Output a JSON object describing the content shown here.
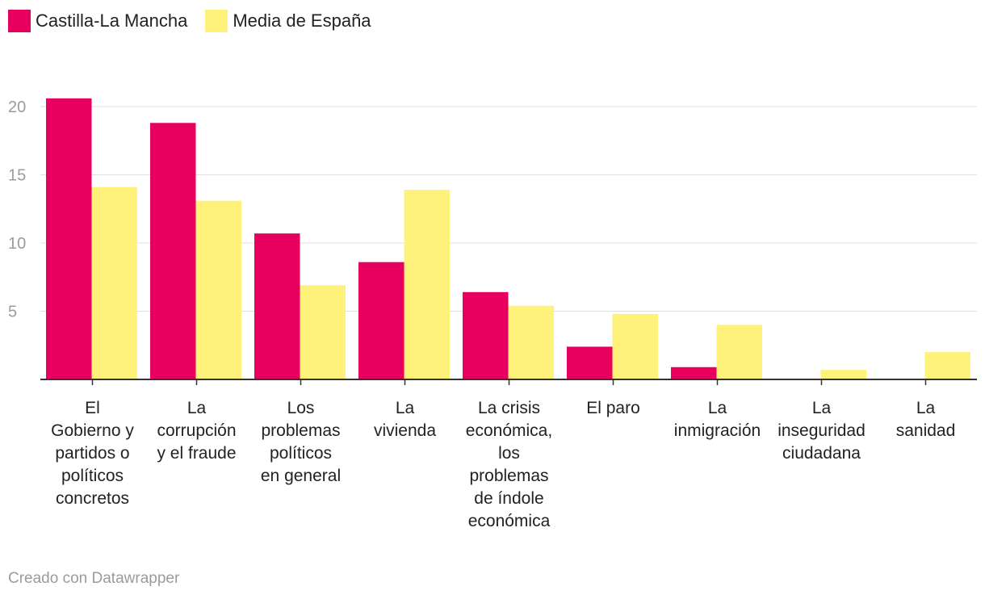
{
  "chart_data": {
    "type": "bar",
    "categories": [
      [
        "El",
        "Gobierno y",
        "partidos o",
        "políticos",
        "concretos"
      ],
      [
        "La",
        "corrupción",
        "y el fraude"
      ],
      [
        "Los",
        "problemas",
        "políticos",
        "en general"
      ],
      [
        "La",
        "vivienda"
      ],
      [
        "La crisis",
        "económica,",
        "los",
        "problemas",
        "de índole",
        "económica"
      ],
      [
        "El paro"
      ],
      [
        "La",
        "inmigración"
      ],
      [
        "La",
        "inseguridad",
        "ciudadana"
      ],
      [
        "La",
        "sanidad"
      ]
    ],
    "series": [
      {
        "name": "Castilla-La Mancha",
        "color": "#e8005f",
        "values": [
          20.6,
          18.8,
          10.7,
          8.6,
          6.4,
          2.4,
          0.9,
          0,
          0
        ]
      },
      {
        "name": "Media de España",
        "color": "#fff27a",
        "values": [
          14.1,
          13.1,
          6.9,
          13.9,
          5.4,
          4.8,
          4.0,
          0.7,
          2.0
        ]
      }
    ],
    "yticks": [
      5,
      10,
      15,
      20
    ],
    "ylim": [
      0,
      22.5
    ],
    "grid": true,
    "legend": "top-left",
    "xlabel": "",
    "ylabel": ""
  },
  "footer": "Creado con Datawrapper"
}
